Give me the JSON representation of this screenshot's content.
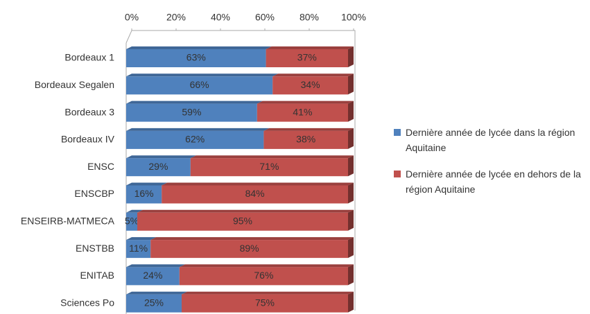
{
  "chart_data": {
    "type": "stacked_bar_horizontal",
    "categories": [
      "Bordeaux 1",
      "Bordeaux Segalen",
      "Bordeaux 3",
      "Bordeaux IV",
      "ENSC",
      "ENSCBP",
      "ENSEIRB-MATMECA",
      "ENSTBB",
      "ENITAB",
      "Sciences Po"
    ],
    "series": [
      {
        "name": "Dernière année de lycée dans la région Aquitaine",
        "color": "#4f81bd",
        "values": [
          63,
          66,
          59,
          62,
          29,
          16,
          5,
          11,
          24,
          25
        ],
        "value_labels": [
          "63%",
          "66%",
          "59%",
          "62%",
          "29%",
          "16%",
          "5%",
          "11%",
          "24%",
          "25%"
        ]
      },
      {
        "name": "Dernière année de lycée en dehors de la région Aquitaine",
        "color": "#c0504d",
        "values": [
          37,
          34,
          41,
          38,
          71,
          84,
          95,
          89,
          76,
          75
        ],
        "value_labels": [
          "37%",
          "34%",
          "41%",
          "38%",
          "71%",
          "84%",
          "95%",
          "89%",
          "76%",
          "75%"
        ]
      }
    ],
    "xlim": [
      0,
      100
    ],
    "xticks": [
      {
        "value": 0,
        "label": "0%"
      },
      {
        "value": 20,
        "label": "20%"
      },
      {
        "value": 40,
        "label": "40%"
      },
      {
        "value": 60,
        "label": "60%"
      },
      {
        "value": 80,
        "label": "80%"
      },
      {
        "value": 100,
        "label": "100%"
      }
    ],
    "legend": "right"
  }
}
